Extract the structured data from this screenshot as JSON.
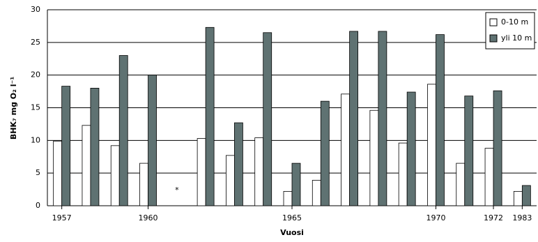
{
  "chart_data": {
    "type": "bar",
    "y_label": "BHK₇ mg O₂ l⁻¹",
    "x_label": "Vuosi",
    "annotation": "*",
    "categories": [
      "1957",
      null,
      null,
      "1960",
      null,
      null,
      null,
      null,
      "1965",
      null,
      null,
      null,
      null,
      "1970",
      null,
      "1972",
      "1983"
    ],
    "series": [
      {
        "name": "0-10 m",
        "color": "#ffffff",
        "values": [
          9.9,
          12.3,
          9.2,
          6.5,
          null,
          10.3,
          7.7,
          10.4,
          2.2,
          3.9,
          17.1,
          14.6,
          9.6,
          18.6,
          6.5,
          8.8,
          2.2
        ]
      },
      {
        "name": "yli 10 m",
        "color": "#5f7272",
        "values": [
          18.3,
          18.0,
          23.0,
          20.0,
          null,
          27.3,
          12.7,
          26.5,
          6.5,
          16.0,
          26.7,
          26.7,
          17.4,
          26.2,
          16.8,
          17.6,
          3.1
        ]
      }
    ],
    "ylim": [
      0,
      30
    ],
    "yticks": [
      0,
      5,
      10,
      15,
      20,
      25,
      30
    ],
    "grid": true,
    "legend": "top-right"
  }
}
